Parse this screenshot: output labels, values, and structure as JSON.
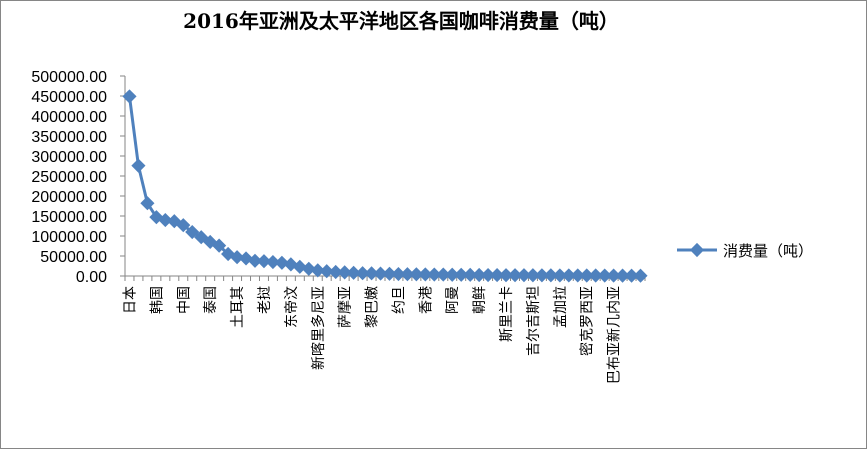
{
  "chart_data": {
    "type": "line",
    "title": "2016年亚洲及太平洋地区各国咖啡消费量（吨）",
    "xlabel": "",
    "ylabel": "",
    "ylim": [
      0,
      500000
    ],
    "ytick_labels": [
      "500000.00",
      "450000.00",
      "400000.00",
      "350000.00",
      "300000.00",
      "250000.00",
      "200000.00",
      "150000.00",
      "100000.00",
      "50000.00",
      "0.00"
    ],
    "x_tick_labels": [
      "日本",
      "韩国",
      "中国",
      "泰国",
      "土耳其",
      "老挝",
      "东帝汶",
      "新喀里多尼亚",
      "萨摩亚",
      "黎巴嫩",
      "约旦",
      "香港",
      "阿曼",
      "朝鲜",
      "斯里兰卡",
      "吉尔吉斯坦",
      "孟加拉",
      "密克罗西亚",
      "巴布亚新几内亚"
    ],
    "legend_position": "right",
    "series": [
      {
        "name": "消费量（吨）",
        "color": "#4F81BD",
        "values": [
          449000,
          276000,
          182000,
          147000,
          140000,
          137000,
          127000,
          110000,
          97000,
          85000,
          76000,
          55000,
          47000,
          44000,
          38000,
          37000,
          35000,
          33000,
          29000,
          23000,
          18000,
          14000,
          12000,
          10000,
          9000,
          8000,
          7000,
          6500,
          6000,
          5500,
          5000,
          4500,
          4200,
          4000,
          3700,
          3500,
          3200,
          3000,
          2800,
          2600,
          2400,
          2300,
          2200,
          2100,
          2000,
          1900,
          1800,
          1700,
          1600,
          1500,
          1400,
          1300,
          1200,
          1100,
          1000,
          900,
          800,
          700
        ]
      }
    ]
  }
}
